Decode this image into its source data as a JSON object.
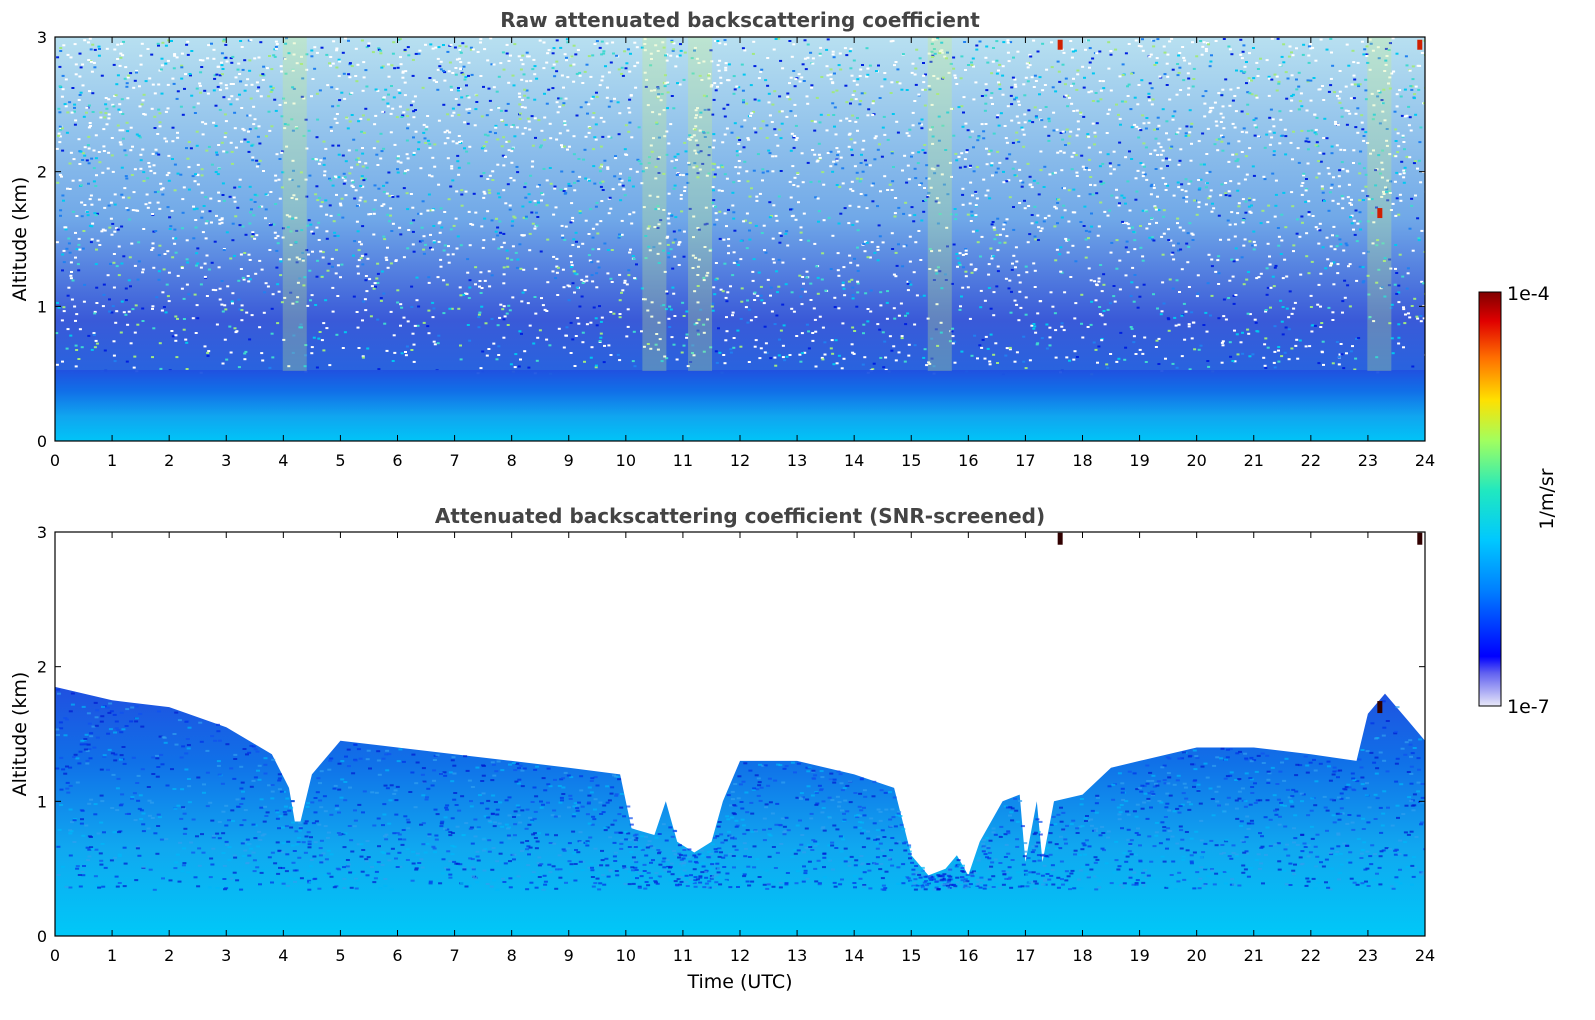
{
  "chart_data": [
    {
      "type": "heatmap",
      "title": "Raw attenuated backscattering coefficient",
      "xlabel": "",
      "ylabel": "Altitude (km)",
      "xlim": [
        0,
        24
      ],
      "ylim": [
        0,
        3
      ],
      "xticks": [
        "0",
        "1",
        "2",
        "3",
        "4",
        "5",
        "6",
        "7",
        "8",
        "9",
        "10",
        "11",
        "12",
        "13",
        "14",
        "15",
        "16",
        "17",
        "18",
        "19",
        "20",
        "21",
        "22",
        "23",
        "24"
      ],
      "yticks": [
        "0",
        "1",
        "2",
        "3"
      ],
      "screened": false,
      "description_of_field": {
        "low_signal_layer_top_km": 0.45,
        "noisy_above_km": 0.6,
        "bright_columns_utc": [
          4.2,
          10.5,
          11.3,
          15.5,
          23.2
        ],
        "strong_spots_utc_km": [
          [
            17.6,
            2.95
          ],
          [
            23.9,
            2.95
          ],
          [
            23.2,
            1.7
          ]
        ]
      }
    },
    {
      "type": "heatmap",
      "title": "Attenuated backscattering coefficient (SNR-screened)",
      "xlabel": "Time (UTC)",
      "ylabel": "Altitude (km)",
      "xlim": [
        0,
        24
      ],
      "ylim": [
        0,
        3
      ],
      "xticks": [
        "0",
        "1",
        "2",
        "3",
        "4",
        "5",
        "6",
        "7",
        "8",
        "9",
        "10",
        "11",
        "12",
        "13",
        "14",
        "15",
        "16",
        "17",
        "18",
        "19",
        "20",
        "21",
        "22",
        "23",
        "24"
      ],
      "yticks": [
        "0",
        "1",
        "2",
        "3"
      ],
      "screened": true,
      "screen_top_km": [
        [
          0,
          1.85
        ],
        [
          1,
          1.75
        ],
        [
          2,
          1.7
        ],
        [
          3,
          1.55
        ],
        [
          3.8,
          1.35
        ],
        [
          4.1,
          1.1
        ],
        [
          4.2,
          0.85
        ],
        [
          4.3,
          0.85
        ],
        [
          4.5,
          1.2
        ],
        [
          5,
          1.45
        ],
        [
          6,
          1.4
        ],
        [
          7,
          1.35
        ],
        [
          8,
          1.3
        ],
        [
          9,
          1.25
        ],
        [
          9.9,
          1.2
        ],
        [
          10.1,
          0.8
        ],
        [
          10.5,
          0.75
        ],
        [
          10.7,
          1.0
        ],
        [
          10.9,
          0.7
        ],
        [
          11.2,
          0.62
        ],
        [
          11.5,
          0.7
        ],
        [
          11.7,
          1.0
        ],
        [
          12,
          1.3
        ],
        [
          13,
          1.3
        ],
        [
          14,
          1.2
        ],
        [
          14.7,
          1.1
        ],
        [
          15.0,
          0.6
        ],
        [
          15.3,
          0.45
        ],
        [
          15.6,
          0.5
        ],
        [
          15.8,
          0.6
        ],
        [
          16.0,
          0.45
        ],
        [
          16.2,
          0.7
        ],
        [
          16.6,
          1.0
        ],
        [
          16.9,
          1.05
        ],
        [
          17.0,
          0.55
        ],
        [
          17.2,
          1.0
        ],
        [
          17.3,
          0.55
        ],
        [
          17.5,
          1.0
        ],
        [
          18,
          1.05
        ],
        [
          18.5,
          1.25
        ],
        [
          19,
          1.3
        ],
        [
          20,
          1.4
        ],
        [
          21,
          1.4
        ],
        [
          22,
          1.35
        ],
        [
          22.8,
          1.3
        ],
        [
          23.0,
          1.65
        ],
        [
          23.3,
          1.8
        ],
        [
          23.7,
          1.6
        ],
        [
          24,
          1.45
        ]
      ]
    }
  ],
  "colorbar": {
    "top_label": "1e-4",
    "bottom_label": "1e-7",
    "unit_label": "1/m/sr",
    "colormap": "jet"
  }
}
